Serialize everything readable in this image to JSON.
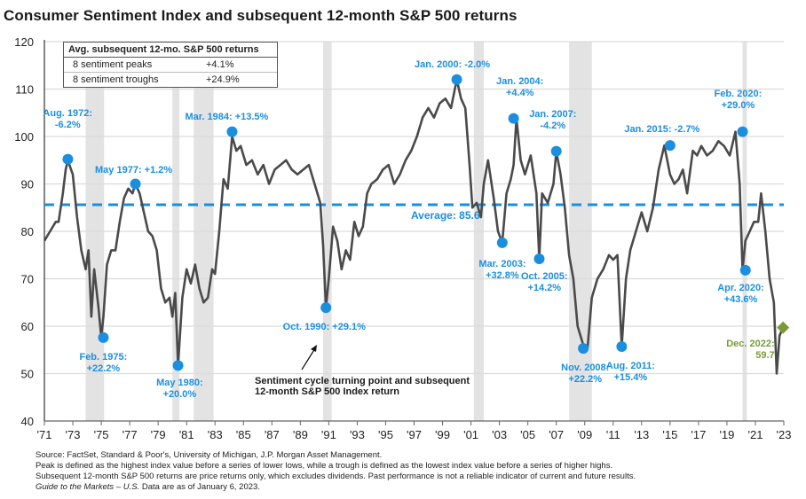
{
  "title": "Consumer Sentiment Index and subsequent 12-month S&P 500 returns",
  "legend_table": {
    "header": "Avg. subsequent 12-mo. S&P 500 returns",
    "rows": [
      {
        "label": "8 sentiment peaks",
        "value": "+4.1%"
      },
      {
        "label": "8 sentiment troughs",
        "value": "+24.9%"
      }
    ]
  },
  "note": {
    "line1": "Sentiment cycle turning point and subsequent",
    "line2": "12-month S&P 500 Index return"
  },
  "footnotes": {
    "source": "Source: FactSet, Standard & Poor's, University of Michigan, J.P. Morgan Asset Management.",
    "definition": "Peak is defined as the highest index value before a series of lower lows, while a trough is defined as the lowest index value before a series of higher highs.",
    "disclaimer": "Subsequent 12-month S&P 500 returns are price returns only, which excludes dividends. Past performance is not a reliable indicator of current and future results.",
    "guide_italic": "Guide to the Markets – U.S.",
    "asof": " Data are as of January 6, 2023."
  },
  "colors": {
    "line": "#4a4a4a",
    "marker": "#1a8fe0",
    "average": "#1a8fe0",
    "current": "#7a9a3a",
    "recession": "#e3e3e3",
    "grid": "#dcdcdc"
  },
  "chart_data": {
    "type": "line",
    "title": "Consumer Sentiment Index and subsequent 12-month S&P 500 returns",
    "xlabel": "",
    "ylabel": "",
    "xlim": [
      1971,
      2023
    ],
    "ylim": [
      40,
      120
    ],
    "yticks": [
      40,
      50,
      60,
      70,
      80,
      90,
      100,
      110,
      120
    ],
    "xtick_labels": [
      "'71",
      "'73",
      "'75",
      "'77",
      "'79",
      "'81",
      "'83",
      "'85",
      "'87",
      "'89",
      "'91",
      "'93",
      "'95",
      "'97",
      "'99",
      "'01",
      "'03",
      "'05",
      "'07",
      "'09",
      "'11",
      "'13",
      "'15",
      "'17",
      "'19",
      "'21",
      "'23"
    ],
    "grid": true,
    "average": {
      "value": 85.6,
      "label": "Average: 85.6"
    },
    "recessions": [
      [
        1973.9,
        1975.2
      ],
      [
        1980.0,
        1980.5
      ],
      [
        1981.5,
        1982.9
      ],
      [
        1990.6,
        1991.2
      ],
      [
        2001.2,
        2001.9
      ],
      [
        2007.9,
        2009.5
      ],
      [
        2020.1,
        2020.4
      ]
    ],
    "series": [
      {
        "name": "Consumer Sentiment Index",
        "x": [
          1971.0,
          1971.4,
          1971.8,
          1972.0,
          1972.3,
          1972.5,
          1972.65,
          1973.0,
          1973.3,
          1973.6,
          1973.9,
          1974.1,
          1974.3,
          1974.5,
          1974.8,
          1975.0,
          1975.15,
          1975.4,
          1975.7,
          1976.0,
          1976.3,
          1976.6,
          1976.9,
          1977.2,
          1977.4,
          1977.7,
          1978.0,
          1978.3,
          1978.6,
          1978.9,
          1979.2,
          1979.5,
          1979.8,
          1980.0,
          1980.2,
          1980.4,
          1980.7,
          1981.0,
          1981.3,
          1981.6,
          1981.9,
          1982.2,
          1982.5,
          1982.8,
          1983.0,
          1983.3,
          1983.6,
          1983.9,
          1984.2,
          1984.5,
          1984.8,
          1985.2,
          1985.6,
          1986.0,
          1986.4,
          1986.8,
          1987.2,
          1987.6,
          1988.0,
          1988.4,
          1988.8,
          1989.2,
          1989.6,
          1990.0,
          1990.4,
          1990.6,
          1990.8,
          1991.0,
          1991.3,
          1991.6,
          1991.9,
          1992.2,
          1992.5,
          1992.8,
          1993.1,
          1993.4,
          1993.7,
          1994.0,
          1994.4,
          1994.8,
          1995.2,
          1995.6,
          1996.0,
          1996.4,
          1996.8,
          1997.2,
          1997.6,
          1998.0,
          1998.4,
          1998.8,
          1999.2,
          1999.6,
          2000.0,
          2000.3,
          2000.6,
          2000.9,
          2001.1,
          2001.4,
          2001.7,
          2001.9,
          2002.2,
          2002.6,
          2002.9,
          2003.2,
          2003.5,
          2003.8,
          2004.0,
          2004.2,
          2004.5,
          2004.8,
          2005.2,
          2005.6,
          2005.8,
          2006.0,
          2006.4,
          2006.8,
          2007.0,
          2007.3,
          2007.6,
          2007.9,
          2008.2,
          2008.5,
          2008.9,
          2009.2,
          2009.5,
          2009.9,
          2010.3,
          2010.7,
          2011.0,
          2011.3,
          2011.6,
          2011.9,
          2012.2,
          2012.6,
          2013.0,
          2013.4,
          2013.8,
          2014.2,
          2014.6,
          2015.0,
          2015.3,
          2015.6,
          2015.9,
          2016.2,
          2016.6,
          2016.9,
          2017.2,
          2017.6,
          2018.0,
          2018.4,
          2018.8,
          2019.2,
          2019.6,
          2019.9,
          2020.1,
          2020.3,
          2020.6,
          2020.9,
          2021.2,
          2021.4,
          2021.7,
          2022.0,
          2022.3,
          2022.5,
          2022.7,
          2022.95
        ],
        "y": [
          78,
          80,
          82,
          82,
          88,
          93,
          95,
          92,
          83,
          76,
          72,
          76,
          62,
          72,
          64,
          57.6,
          62,
          73,
          76,
          76,
          82,
          87,
          89,
          88,
          90,
          88,
          84,
          80,
          79,
          76,
          68,
          65,
          66,
          62,
          67,
          51.7,
          66,
          72,
          69,
          73,
          68,
          65,
          66,
          72,
          71,
          80,
          91,
          89,
          100,
          97,
          98,
          94,
          95,
          92,
          94,
          90,
          93,
          94,
          95,
          93,
          92,
          93,
          94,
          90,
          86,
          77,
          63.9,
          70,
          81,
          78,
          72,
          76,
          74,
          82,
          79,
          81,
          88,
          90,
          91,
          93,
          94,
          90,
          92,
          95,
          97,
          100,
          104,
          106,
          104,
          107,
          108,
          106,
          112,
          108,
          106,
          94,
          85,
          86,
          83,
          90,
          95,
          87,
          80,
          77.6,
          88,
          91,
          94,
          103.8,
          95,
          92,
          96,
          88,
          74.2,
          88,
          86,
          90,
          96.9,
          92,
          85,
          75,
          70,
          60,
          56,
          55.4,
          66,
          70,
          72,
          75,
          74,
          75,
          55.7,
          70,
          76,
          80,
          84,
          80,
          85,
          93,
          98.1,
          92,
          90,
          91,
          93,
          88,
          97,
          96,
          98,
          96,
          97,
          99,
          98,
          96,
          101,
          90,
          71.8,
          78,
          80,
          82,
          82,
          88,
          80,
          70,
          65,
          50,
          58,
          59.7
        ]
      }
    ],
    "annotations": [
      {
        "label": "Aug. 1972:",
        "value": "-6.2%",
        "x": 1972.65,
        "y": 95.2,
        "type": "peak"
      },
      {
        "label": "Feb. 1975:",
        "value": "+22.2%",
        "x": 1975.15,
        "y": 57.6,
        "type": "trough"
      },
      {
        "label": "May 1977: +1.2%",
        "value": "",
        "x": 1977.4,
        "y": 90.0,
        "type": "peak"
      },
      {
        "label": "May 1980:",
        "value": "+20.0%",
        "x": 1980.4,
        "y": 51.7,
        "type": "trough"
      },
      {
        "label": "Mar. 1984: +13.5%",
        "value": "",
        "x": 1984.2,
        "y": 101.0,
        "type": "peak"
      },
      {
        "label": "Oct. 1990: +29.1%",
        "value": "",
        "x": 1990.8,
        "y": 63.9,
        "type": "trough"
      },
      {
        "label": "Jan. 2000: -2.0%",
        "value": "",
        "x": 2000.0,
        "y": 112.0,
        "type": "peak"
      },
      {
        "label": "Mar. 2003:",
        "value": "+32.8%",
        "x": 2003.2,
        "y": 77.6,
        "type": "trough"
      },
      {
        "label": "Jan. 2004:",
        "value": "+4.4%",
        "x": 2004.0,
        "y": 103.8,
        "type": "peak"
      },
      {
        "label": "Oct. 2005:",
        "value": "+14.2%",
        "x": 2005.8,
        "y": 74.2,
        "type": "trough"
      },
      {
        "label": "Jan. 2007:",
        "value": "-4.2%",
        "x": 2007.0,
        "y": 96.9,
        "type": "peak"
      },
      {
        "label": "Nov. 2008:",
        "value": "+22.2%",
        "x": 2008.9,
        "y": 55.3,
        "type": "trough"
      },
      {
        "label": "Aug. 2011:",
        "value": "+15.4%",
        "x": 2011.6,
        "y": 55.7,
        "type": "trough"
      },
      {
        "label": "Jan. 2015: -2.7%",
        "value": "",
        "x": 2015.0,
        "y": 98.1,
        "type": "peak"
      },
      {
        "label": "Feb. 2020:",
        "value": "+29.0%",
        "x": 2020.1,
        "y": 101.0,
        "type": "peak"
      },
      {
        "label": "Apr. 2020:",
        "value": "+43.6%",
        "x": 2020.3,
        "y": 71.8,
        "type": "trough"
      },
      {
        "label": "Dec. 2022:",
        "value": "59.7",
        "x": 2022.95,
        "y": 59.7,
        "type": "current"
      }
    ]
  }
}
